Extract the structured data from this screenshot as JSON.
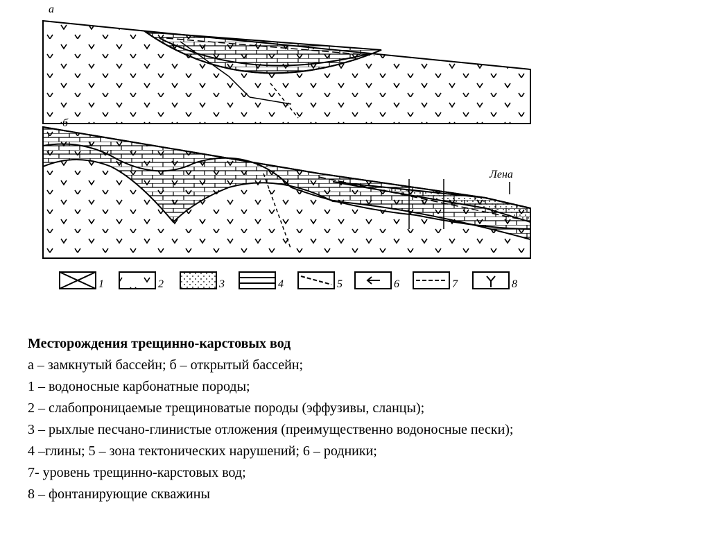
{
  "diagram": {
    "panels": [
      {
        "label": "а"
      },
      {
        "label": "б",
        "river": "Лена"
      }
    ],
    "legend": [
      "1",
      "2",
      "3",
      "4",
      "5",
      "6",
      "7",
      "8"
    ]
  },
  "caption": {
    "title": "Месторождения трещинно-карстовых вод",
    "lines": [
      "а – замкнутый бассейн; б – открытый бассейн;",
      "1 – водоносные карбонатные породы;",
      "2 – слабопроницаемые трещиноватые породы (эффузивы, сланцы);",
      "3 – рыхлые песчано-глинистые отложения (преимущественно водоносные пески);",
      "4 –глины; 5 – зона тектонических нарушений; 6 – родники;",
      "7- уровень трещинно-карстовых вод;",
      "8 – фонтанирующие скважины"
    ]
  }
}
